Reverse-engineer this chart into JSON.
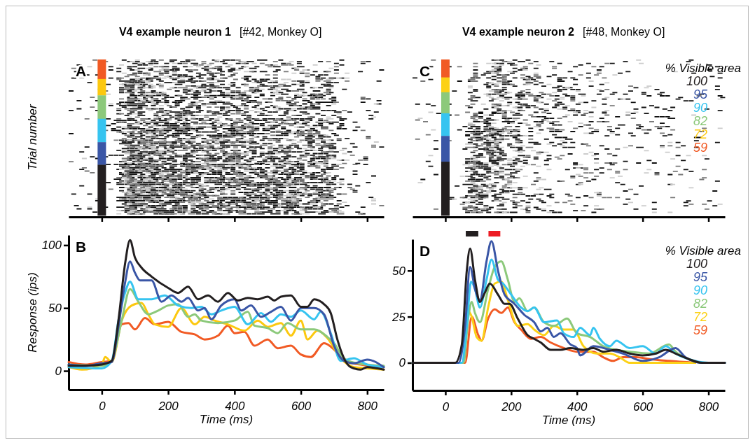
{
  "chart_data": [
    {
      "type": "other",
      "title": "V4 example neuron 1",
      "subtitle": "[#42, Monkey O]",
      "ylabel": "Trial number",
      "annotations": [
        "A"
      ]
    },
    {
      "type": "line",
      "xlabel": "Time (ms)",
      "ylabel": "Response (ips)",
      "annotations": [
        "B"
      ],
      "xlim": [
        -100,
        850
      ],
      "xticks": [
        0,
        200,
        400,
        600,
        800
      ],
      "ylim": [
        -15,
        108
      ],
      "yticks": [
        0,
        50,
        100
      ],
      "x": [
        -100,
        -50,
        0,
        30,
        50,
        70,
        85,
        100,
        120,
        150,
        200,
        230,
        260,
        290,
        320,
        350,
        380,
        410,
        440,
        470,
        500,
        520,
        540,
        570,
        600,
        620,
        640,
        670,
        690,
        710,
        730,
        750,
        780,
        800,
        850
      ],
      "series": [
        {
          "color": "#231f20",
          "values": [
            4,
            4,
            5,
            8,
            40,
            85,
            104,
            90,
            82,
            75,
            66,
            62,
            67,
            57,
            60,
            55,
            62,
            56,
            58,
            57,
            59,
            56,
            59,
            60,
            51,
            51,
            57,
            53,
            46,
            25,
            10,
            3,
            1,
            3,
            1
          ]
        },
        {
          "color": "#3a56a6",
          "x": [
            -100,
            -50,
            0,
            30,
            50,
            70,
            85,
            100,
            115,
            150,
            180,
            210,
            240,
            260,
            290,
            310,
            330,
            360,
            400,
            420,
            450,
            480,
            510,
            540,
            570,
            600,
            640,
            670,
            700,
            730,
            760,
            800,
            850
          ],
          "values": [
            5,
            4,
            6,
            7,
            35,
            70,
            87,
            78,
            72,
            72,
            55,
            60,
            55,
            58,
            48,
            50,
            41,
            52,
            57,
            48,
            52,
            43,
            47,
            51,
            40,
            50,
            50,
            45,
            20,
            8,
            6,
            9,
            3
          ]
        },
        {
          "color": "#36c4f0",
          "x": [
            -100,
            0,
            30,
            50,
            70,
            85,
            110,
            150,
            190,
            230,
            270,
            300,
            330,
            360,
            400,
            440,
            480,
            510,
            540,
            570,
            600,
            640,
            660,
            690,
            720,
            760,
            800,
            850
          ],
          "values": [
            3,
            2,
            8,
            40,
            62,
            71,
            57,
            57,
            60,
            52,
            50,
            51,
            45,
            48,
            51,
            37,
            46,
            39,
            45,
            43,
            48,
            41,
            47,
            30,
            8,
            10,
            5,
            3
          ]
        },
        {
          "color": "#8cc97b",
          "x": [
            -100,
            0,
            30,
            60,
            85,
            110,
            140,
            170,
            200,
            230,
            260,
            280,
            300,
            350,
            400,
            440,
            460,
            500,
            530,
            560,
            600,
            640,
            680,
            700,
            730,
            770,
            850
          ],
          "values": [
            5,
            4,
            8,
            40,
            65,
            55,
            45,
            48,
            52,
            53,
            43,
            45,
            40,
            38,
            40,
            47,
            36,
            34,
            30,
            38,
            33,
            33,
            27,
            22,
            10,
            6,
            4
          ]
        },
        {
          "color": "#fcc80f",
          "x": [
            -100,
            -60,
            0,
            10,
            30,
            60,
            90,
            120,
            140,
            160,
            200,
            240,
            280,
            310,
            340,
            380,
            430,
            470,
            500,
            540,
            570,
            600,
            620,
            650,
            680,
            720,
            760,
            800,
            850
          ],
          "values": [
            3,
            1,
            5,
            11,
            7,
            40,
            52,
            54,
            45,
            37,
            35,
            50,
            37,
            43,
            40,
            37,
            32,
            40,
            35,
            38,
            28,
            40,
            25,
            32,
            26,
            10,
            3,
            2,
            1
          ]
        },
        {
          "color": "#f15a24",
          "x": [
            -100,
            -50,
            0,
            30,
            60,
            80,
            100,
            130,
            160,
            200,
            240,
            280,
            310,
            350,
            380,
            400,
            430,
            460,
            500,
            530,
            570,
            600,
            630,
            670,
            700,
            730,
            780,
            850
          ],
          "values": [
            7,
            5,
            7,
            8,
            37,
            38,
            33,
            42,
            37,
            39,
            31,
            29,
            25,
            28,
            36,
            30,
            31,
            20,
            25,
            18,
            20,
            13,
            11,
            22,
            17,
            8,
            5,
            3
          ]
        }
      ]
    },
    {
      "type": "other",
      "title": "V4 example neuron 2",
      "subtitle": "[#48, Monkey O]",
      "annotations": [
        "C"
      ],
      "legend_title": "% Visible area",
      "categories": [
        "100",
        "95",
        "90",
        "82",
        "72",
        "59"
      ],
      "colors": [
        "#231f20",
        "#3a56a6",
        "#36c4f0",
        "#8cc97b",
        "#fcc80f",
        "#f15a24"
      ]
    },
    {
      "type": "line",
      "xlabel": "Time (ms)",
      "annotations": [
        "D"
      ],
      "legend": "top right",
      "legend_title": "% Visible area",
      "xlim": [
        -100,
        850
      ],
      "xticks": [
        0,
        200,
        400,
        600,
        800
      ],
      "ylim": [
        -15,
        67
      ],
      "yticks": [
        0,
        25,
        50
      ],
      "series": [
        {
          "name": "100",
          "color": "#231f20",
          "x": [
            -100,
            30,
            50,
            65,
            75,
            90,
            105,
            120,
            135,
            160,
            180,
            195,
            220,
            250,
            270,
            290,
            320,
            350,
            380,
            420,
            450,
            480,
            520,
            560,
            600,
            640,
            670,
            700,
            740,
            780,
            850
          ],
          "values": [
            0,
            0,
            10,
            50,
            62,
            45,
            33,
            38,
            43,
            37,
            32,
            32,
            24,
            15,
            13,
            11,
            7,
            7,
            8,
            7,
            8,
            6,
            7,
            5,
            4,
            5,
            7,
            5,
            2,
            0,
            0
          ]
        },
        {
          "name": "95",
          "color": "#3a56a6",
          "x": [
            -100,
            40,
            60,
            75,
            90,
            105,
            125,
            140,
            160,
            180,
            210,
            240,
            270,
            290,
            310,
            330,
            350,
            380,
            400,
            410,
            450,
            500,
            540,
            600,
            650,
            700,
            730,
            780,
            850
          ],
          "values": [
            0,
            0,
            20,
            52,
            40,
            34,
            55,
            66,
            50,
            37,
            32,
            26,
            22,
            17,
            19,
            14,
            16,
            10,
            8,
            4,
            9,
            7,
            5,
            1,
            3,
            8,
            3,
            0,
            0
          ]
        },
        {
          "name": "90",
          "color": "#36c4f0",
          "x": [
            -100,
            50,
            65,
            78,
            90,
            105,
            125,
            140,
            160,
            175,
            200,
            230,
            250,
            270,
            300,
            340,
            360,
            390,
            410,
            440,
            450,
            470,
            500,
            520,
            560,
            600,
            640,
            670,
            700,
            740,
            800,
            850
          ],
          "values": [
            0,
            0,
            20,
            44,
            40,
            30,
            45,
            56,
            45,
            43,
            37,
            30,
            28,
            30,
            22,
            23,
            16,
            14,
            19,
            15,
            19,
            13,
            9,
            12,
            8,
            9,
            5,
            9,
            5,
            2,
            0,
            0
          ]
        },
        {
          "name": "82",
          "color": "#8cc97b",
          "x": [
            -100,
            55,
            70,
            80,
            90,
            105,
            130,
            150,
            170,
            190,
            210,
            225,
            250,
            270,
            300,
            330,
            370,
            400,
            440,
            480,
            520,
            560,
            620,
            680,
            700,
            740,
            780,
            850
          ],
          "values": [
            0,
            0,
            25,
            33,
            27,
            22,
            40,
            52,
            55,
            45,
            33,
            35,
            28,
            30,
            22,
            20,
            24,
            16,
            14,
            9,
            7,
            6,
            5,
            10,
            6,
            2,
            0,
            0
          ]
        },
        {
          "name": "72",
          "color": "#fcd116",
          "x": [
            -100,
            55,
            70,
            80,
            95,
            110,
            130,
            150,
            170,
            190,
            220,
            250,
            270,
            300,
            330,
            360,
            390,
            420,
            460,
            500,
            530,
            560,
            600,
            760
          ],
          "values": [
            0,
            0,
            28,
            25,
            14,
            12,
            30,
            43,
            44,
            34,
            20,
            21,
            18,
            15,
            20,
            18,
            18,
            9,
            5,
            5,
            3,
            0,
            0,
            0
          ]
        },
        {
          "name": "59",
          "color": "#f15a24",
          "x": [
            -100,
            60,
            80,
            100,
            110,
            130,
            150,
            170,
            190,
            210,
            230,
            260,
            290,
            320,
            360,
            400,
            450,
            480,
            510,
            540,
            580,
            620,
            680,
            760
          ],
          "values": [
            0,
            0,
            25,
            15,
            12,
            24,
            29,
            27,
            30,
            22,
            18,
            13,
            14,
            11,
            8,
            6,
            6,
            3,
            1,
            3,
            3,
            2,
            1,
            0
          ]
        }
      ]
    }
  ]
}
